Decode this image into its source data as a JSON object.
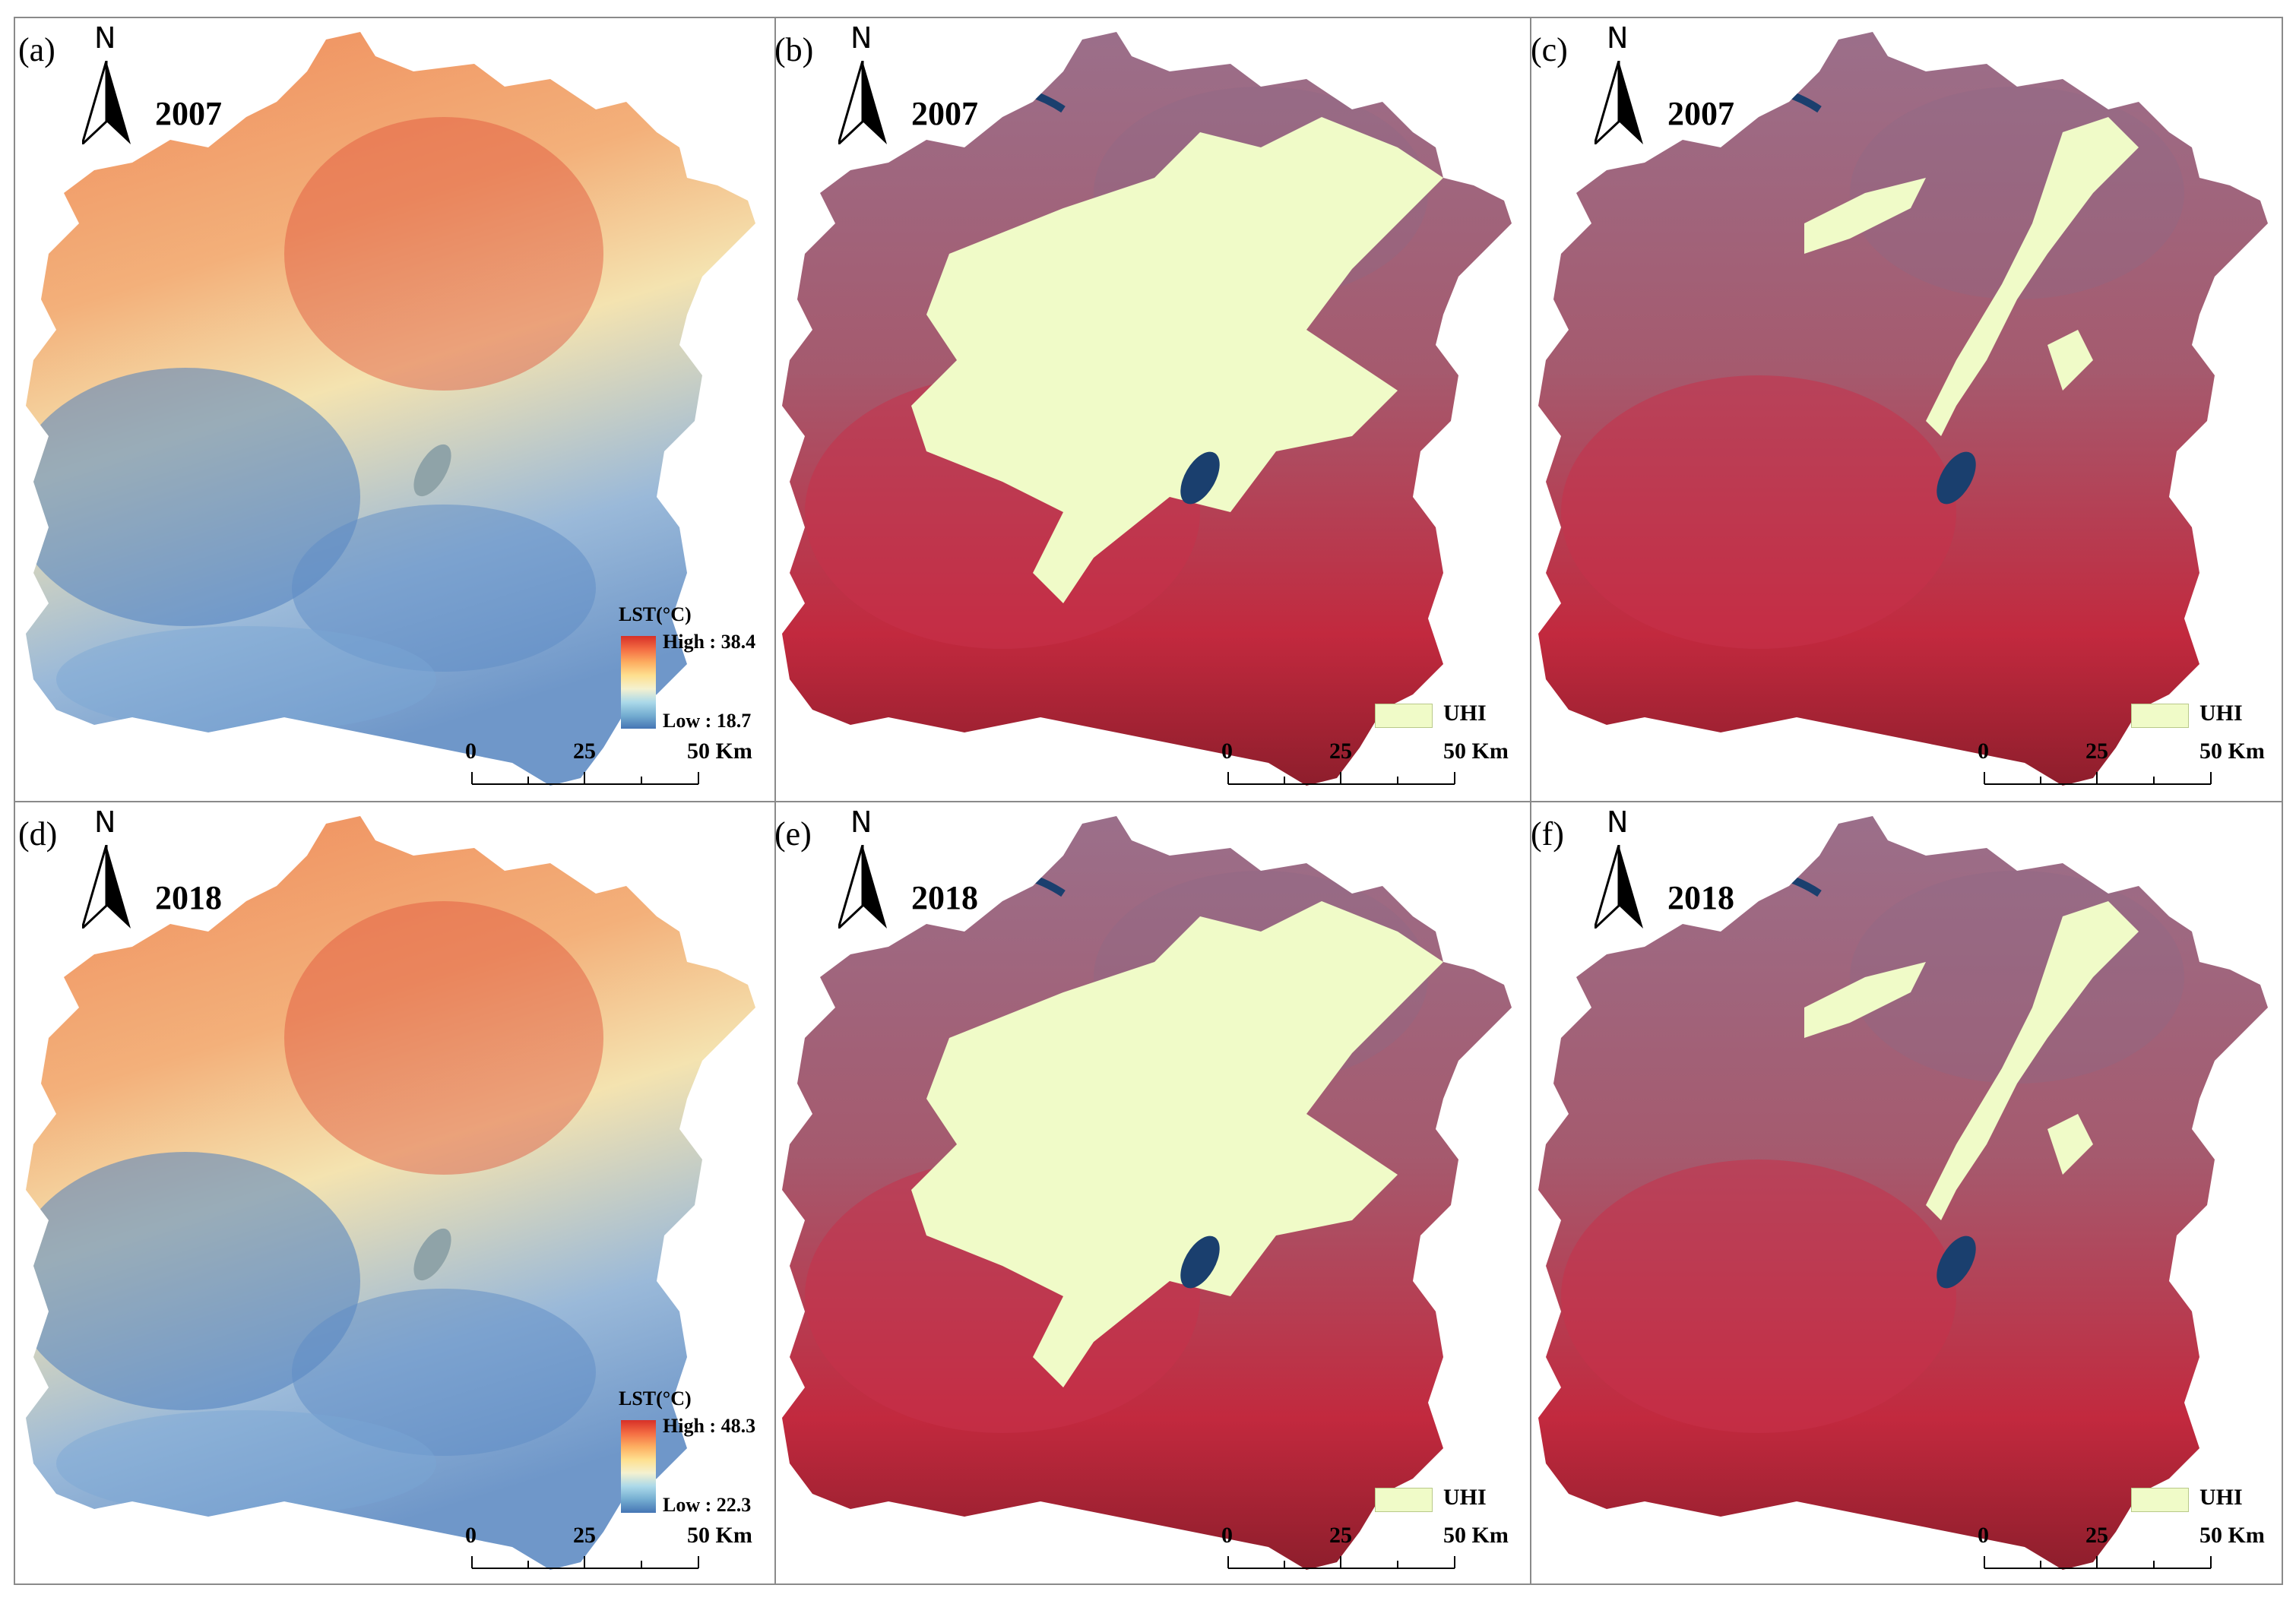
{
  "figure": {
    "panels": [
      {
        "label": "(a)",
        "north": "N",
        "year": "2007",
        "kind": "lst",
        "legend": {
          "title": "LST(°C)",
          "high": "High : 38.4",
          "low": "Low : 18.7"
        }
      },
      {
        "label": "(b)",
        "north": "N",
        "year": "2007",
        "kind": "uhi_large",
        "legend": {
          "uhi": "UHI"
        }
      },
      {
        "label": "(c)",
        "north": "N",
        "year": "2007",
        "kind": "uhi_small",
        "legend": {
          "uhi": "UHI"
        }
      },
      {
        "label": "(d)",
        "north": "N",
        "year": "2018",
        "kind": "lst",
        "legend": {
          "title": "LST(°C)",
          "high": "High : 48.3",
          "low": "Low : 22.3"
        }
      },
      {
        "label": "(e)",
        "north": "N",
        "year": "2018",
        "kind": "uhi_large",
        "legend": {
          "uhi": "UHI"
        }
      },
      {
        "label": "(f)",
        "north": "N",
        "year": "2018",
        "kind": "uhi_small",
        "legend": {
          "uhi": "UHI"
        }
      }
    ],
    "scale": {
      "ticks": [
        "0",
        "25",
        "50 Km"
      ]
    },
    "colors": {
      "lst_high": "#d73027",
      "lst_mid": "#f4f1d0",
      "lst_low": "#4575b4",
      "uhi": "#f0fbc8",
      "false_color_red": "#b5243a",
      "water": "#1a3f6e"
    }
  }
}
